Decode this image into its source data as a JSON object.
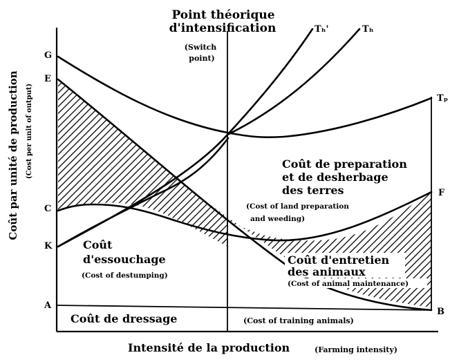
{
  "heading": {
    "switch_title_line1": "Point théorique",
    "switch_title_line2": "d'intensification",
    "switch_en_line1": "(Switch",
    "switch_en_line2": "point)"
  },
  "y_axis": {
    "label_fr": "Coût par unité de production",
    "label_en": "(Cost per unit of output)"
  },
  "x_axis": {
    "label_fr": "Intensité de la production",
    "label_en": "(Farming intensity)"
  },
  "point_labels": {
    "G": "G",
    "E": "E",
    "C": "C",
    "K": "K",
    "A": "A",
    "B": "B",
    "F": "F",
    "th_prime": "Tₕ'",
    "th": "Tₕ",
    "tp": "Tₚ"
  },
  "regions": {
    "land_prep": {
      "line1": "Coût de preparation",
      "line2": "et de desherbage",
      "line3": "des terres",
      "en_line1": "(Cost of land preparation",
      "en_line2": "and weeding)"
    },
    "destumping": {
      "line1": "Coût",
      "line2": "d'essouchage",
      "en": "(Cost of destumping)"
    },
    "animal_maint": {
      "line1": "Coût d'entretien",
      "line2": "des animaux",
      "en": "(Cost of animal maintenance)"
    },
    "training": {
      "left": "Coût de dressage",
      "right": "(Cost of training animals)"
    }
  },
  "colors": {
    "ink": "#000000",
    "background": "#ffffff"
  }
}
